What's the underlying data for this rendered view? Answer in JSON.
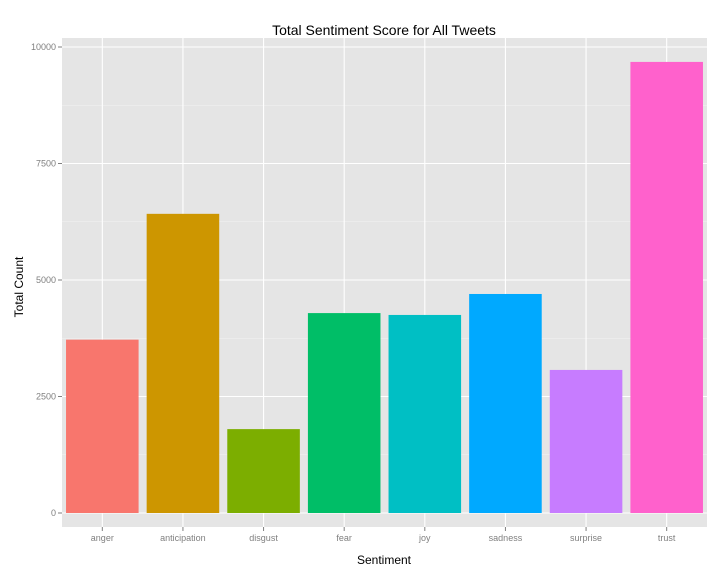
{
  "chart_data": {
    "type": "bar",
    "title": "Total Sentiment Score for All Tweets",
    "xlabel": "Sentiment",
    "ylabel": "Total Count",
    "categories": [
      "anger",
      "anticipation",
      "disgust",
      "fear",
      "joy",
      "sadness",
      "surprise",
      "trust"
    ],
    "values": [
      3720,
      6420,
      1800,
      4290,
      4250,
      4700,
      3070,
      9680
    ],
    "colors": [
      "#F8766D",
      "#CD9600",
      "#7CAE00",
      "#00BE67",
      "#00BFC4",
      "#00A9FF",
      "#C77CFF",
      "#FF61CC"
    ],
    "ylim": [
      0,
      10000
    ],
    "yticks": [
      0,
      2500,
      5000,
      7500,
      10000
    ],
    "ytick_labels": [
      "0",
      "2500",
      "5000",
      "7500",
      "10000"
    ],
    "grid": true,
    "legend": "none",
    "panel_background": "#E5E5E5"
  }
}
